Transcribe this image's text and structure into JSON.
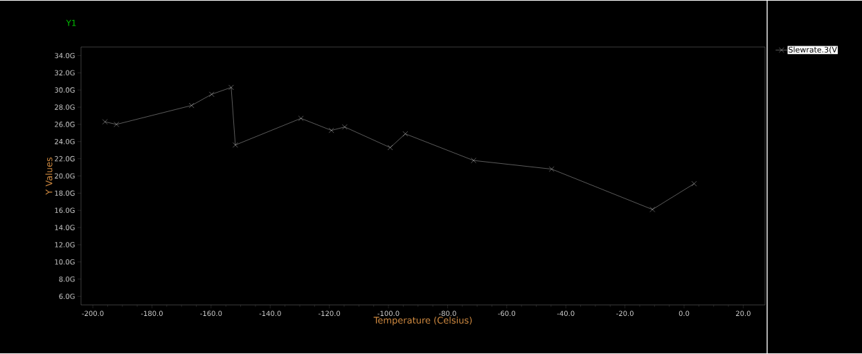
{
  "chart_data": {
    "type": "line",
    "xlabel": "Temperature (Celsius)",
    "ylabel": "Y Values",
    "annotations": [
      "Y1"
    ],
    "x": [
      -195.9,
      -192.0,
      -166.6,
      -159.8,
      -153.2,
      -151.8,
      -129.6,
      -119.3,
      -114.8,
      -99.4,
      -94.3,
      -71.2,
      -44.8,
      -10.7,
      3.4
    ],
    "series": [
      {
        "name": "Slewrate.3(V",
        "color": "#e6e6e6",
        "values": [
          26.3,
          26.0,
          28.2,
          29.5,
          30.3,
          23.6,
          26.7,
          25.3,
          25.7,
          23.3,
          24.9,
          21.8,
          20.8,
          16.1,
          19.1
        ]
      }
    ],
    "xlim": [
      -204,
      27.4
    ],
    "ylim": [
      5.0,
      35.0
    ],
    "xticks": [
      {
        "value": -200,
        "label": "-200.0"
      },
      {
        "value": -180,
        "label": "-180.0"
      },
      {
        "value": -160,
        "label": "-160.0"
      },
      {
        "value": -140,
        "label": "-140.0"
      },
      {
        "value": -120,
        "label": "-120.0"
      },
      {
        "value": -100,
        "label": "-100.0"
      },
      {
        "value": -80,
        "label": "-80.0"
      },
      {
        "value": -60,
        "label": "-60.0"
      },
      {
        "value": -40,
        "label": "-40.0"
      },
      {
        "value": -20,
        "label": "-20.0"
      },
      {
        "value": 0,
        "label": "0.0"
      },
      {
        "value": 20,
        "label": "20.0"
      }
    ],
    "yticks": [
      {
        "value": 6,
        "label": "6.0G"
      },
      {
        "value": 8,
        "label": "8.0G"
      },
      {
        "value": 10,
        "label": "10.0G"
      },
      {
        "value": 12,
        "label": "12.0G"
      },
      {
        "value": 14,
        "label": "14.0G"
      },
      {
        "value": 16,
        "label": "16.0G"
      },
      {
        "value": 18,
        "label": "18.0G"
      },
      {
        "value": 20,
        "label": "20.0G"
      },
      {
        "value": 22,
        "label": "22.0G"
      },
      {
        "value": 24,
        "label": "24.0G"
      },
      {
        "value": 26,
        "label": "26.0G"
      },
      {
        "value": 28,
        "label": "28.0G"
      },
      {
        "value": 30,
        "label": "30.0G"
      },
      {
        "value": 32,
        "label": "32.0G"
      },
      {
        "value": 34,
        "label": "34.0G"
      }
    ],
    "legend": "top right",
    "marker": "cross",
    "line_style": "solid"
  }
}
